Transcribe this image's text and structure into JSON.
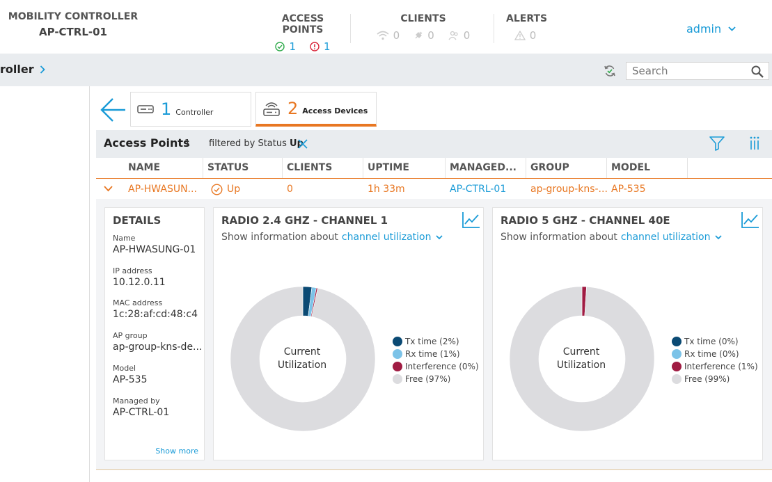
{
  "header": {
    "brand_title": "MOBILITY CONTROLLER",
    "brand_name": "AP-CTRL-01",
    "access_points": {
      "label": "ACCESS POINTS",
      "up": "1",
      "down": "1"
    },
    "clients": {
      "label": "CLIENTS",
      "wireless": "0",
      "wired": "0",
      "remote": "0"
    },
    "alerts": {
      "label": "ALERTS",
      "count": "0"
    },
    "user": "admin"
  },
  "breadcrumb": {
    "current": "roller"
  },
  "search": {
    "placeholder": "Search"
  },
  "tabs": [
    {
      "count": "1",
      "label": "Controller"
    },
    {
      "count": "2",
      "label": "Access Devices"
    }
  ],
  "ap_list": {
    "title": "Access Points",
    "count": "1",
    "filter_prefix": "filtered by",
    "filter_field": "Status",
    "filter_value": "Up",
    "columns": [
      "NAME",
      "STATUS",
      "CLIENTS",
      "UPTIME",
      "MANAGED...",
      "GROUP",
      "MODEL"
    ],
    "row": {
      "name": "AP-HWASUN...",
      "status": "Up",
      "clients": "0",
      "uptime": "1h 33m",
      "managed_by": "AP-CTRL-01",
      "group": "ap-group-kns-...",
      "model": "AP-535"
    }
  },
  "details": {
    "title": "DETAILS",
    "fields": [
      {
        "label": "Name",
        "value": "AP-HWASUNG-01"
      },
      {
        "label": "IP address",
        "value": "10.12.0.11"
      },
      {
        "label": "MAC address",
        "value": "1c:28:af:cd:48:c4"
      },
      {
        "label": "AP group",
        "value": "ap-group-kns-de..."
      },
      {
        "label": "Model",
        "value": "AP-535"
      },
      {
        "label": "Managed by",
        "value": "AP-CTRL-01"
      }
    ],
    "show_more": "Show more"
  },
  "radios": [
    {
      "title": "RADIO 2.4 GHZ - CHANNEL 1",
      "show_prefix": "Show information about",
      "show_value": "channel utilization",
      "center_line1": "Current",
      "center_line2": "Utilization",
      "legend": [
        {
          "label": "Tx time (2%)",
          "color": "#0b4a74",
          "pct": 2
        },
        {
          "label": "Rx time (1%)",
          "color": "#7cc3e8",
          "pct": 1
        },
        {
          "label": "Interference (0%)",
          "color": "#a01c43",
          "pct": 0.3
        },
        {
          "label": "Free (97%)",
          "color": "#dcdcdf",
          "pct": 97
        }
      ]
    },
    {
      "title": "RADIO 5 GHZ - CHANNEL 40E",
      "show_prefix": "Show information about",
      "show_value": "channel utilization",
      "center_line1": "Current",
      "center_line2": "Utilization",
      "legend": [
        {
          "label": "Tx time (0%)",
          "color": "#0b4a74",
          "pct": 0
        },
        {
          "label": "Rx time (0%)",
          "color": "#7cc3e8",
          "pct": 0
        },
        {
          "label": "Interference (1%)",
          "color": "#a01c43",
          "pct": 1
        },
        {
          "label": "Free (99%)",
          "color": "#dcdcdf",
          "pct": 99
        }
      ]
    }
  ]
}
